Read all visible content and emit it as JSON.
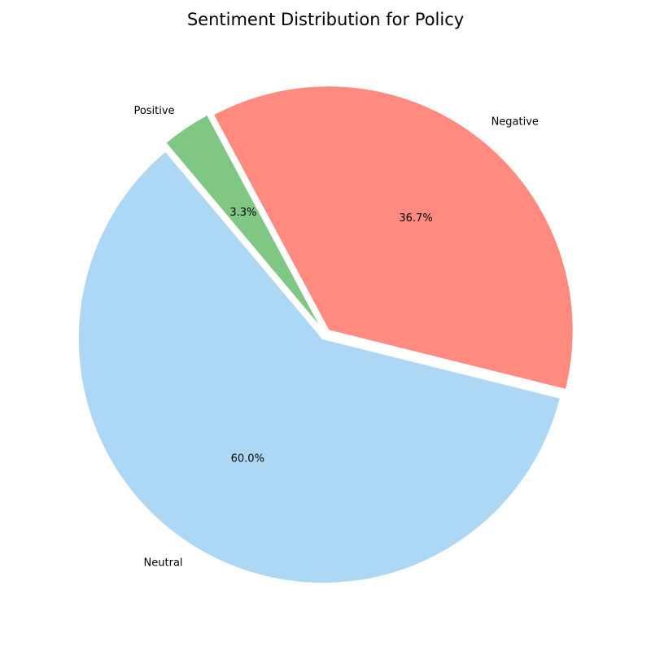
{
  "chart_data": {
    "type": "pie",
    "title": "Sentiment Distribution for Policy",
    "slices": [
      {
        "label": "Neutral",
        "value": 60.0,
        "pct_label": "60.0%",
        "color": "#add8f5"
      },
      {
        "label": "Negative",
        "value": 36.7,
        "pct_label": "36.7%",
        "color": "#ff8a80"
      },
      {
        "label": "Positive",
        "value": 3.3,
        "pct_label": "3.3%",
        "color": "#81c784"
      }
    ],
    "start_angle_deg": 130,
    "direction": "counterclockwise",
    "edge_color": "#ffffff"
  }
}
